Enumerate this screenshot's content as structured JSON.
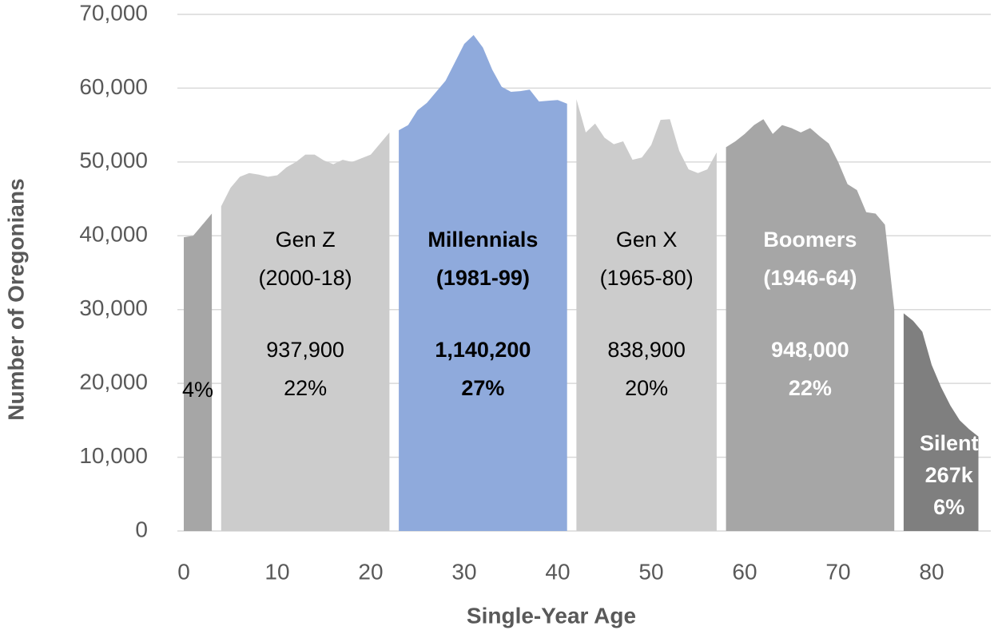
{
  "chart_data": {
    "type": "area",
    "x_label": "Single-Year Age",
    "y_label": "Number of Oregonians",
    "xlim": [
      0,
      86
    ],
    "xticks": [
      0,
      10,
      20,
      30,
      40,
      50,
      60,
      70,
      80
    ],
    "ylim": [
      0,
      70000
    ],
    "yticks": [
      0,
      {
        "value": 10000,
        "label": "10,000"
      },
      {
        "value": 20000,
        "label": "20,000"
      },
      {
        "value": 30000,
        "label": "30,000"
      },
      {
        "value": 40000,
        "label": "40,000"
      },
      {
        "value": 50000,
        "label": "50,000"
      },
      {
        "value": 60000,
        "label": "60,000"
      },
      {
        "value": 70000,
        "label": "70,000"
      }
    ],
    "grid": true,
    "series": [
      {
        "color": "#a6a6a6",
        "label_color": "#000000",
        "label_bold": false,
        "labels": [
          "4%"
        ],
        "x": [
          0,
          1,
          2,
          3
        ],
        "values": [
          39800,
          40000,
          41500,
          43000
        ]
      },
      {
        "color": "#cccccc",
        "label_color": "#000000",
        "label_bold": false,
        "labels": [
          "Gen Z",
          "(2000-18)",
          "937,900",
          "22%"
        ],
        "x": [
          4,
          5,
          6,
          7,
          8,
          9,
          10,
          11,
          12,
          13,
          14,
          15,
          16,
          17,
          18,
          19,
          20,
          21,
          22
        ],
        "values": [
          44000,
          46500,
          48000,
          48500,
          48300,
          48000,
          48200,
          49300,
          50000,
          51000,
          51000,
          50200,
          49700,
          50300,
          50000,
          50500,
          51000,
          52500,
          54000
        ]
      },
      {
        "color": "#8faadc",
        "label_color": "#000000",
        "label_bold": true,
        "labels": [
          "Millennials",
          "(1981-99)",
          "1,140,200",
          "27%"
        ],
        "x": [
          23,
          24,
          25,
          26,
          27,
          28,
          29,
          30,
          31,
          32,
          33,
          34,
          35,
          36,
          37,
          38,
          39,
          40,
          41
        ],
        "values": [
          54300,
          55000,
          57000,
          58000,
          59500,
          61000,
          63500,
          66000,
          67200,
          65500,
          62500,
          60200,
          59500,
          59600,
          59800,
          58200,
          58300,
          58400,
          57900
        ]
      },
      {
        "color": "#cccccc",
        "label_color": "#000000",
        "label_bold": false,
        "labels": [
          "Gen X",
          "(1965-80)",
          "838,900",
          "20%"
        ],
        "x": [
          42,
          43,
          44,
          45,
          46,
          47,
          48,
          49,
          50,
          51,
          52,
          53,
          54,
          55,
          56,
          57
        ],
        "values": [
          58500,
          54000,
          55200,
          53300,
          52400,
          52800,
          50300,
          50600,
          52300,
          55700,
          55800,
          51500,
          49000,
          48500,
          49000,
          51300
        ]
      },
      {
        "color": "#a6a6a6",
        "label_color": "#ffffff",
        "label_bold": true,
        "labels": [
          "Boomers",
          "(1946-64)",
          "948,000",
          "22%"
        ],
        "x": [
          58,
          59,
          60,
          61,
          62,
          63,
          64,
          65,
          66,
          67,
          68,
          69,
          70,
          71,
          72,
          73,
          74,
          75,
          76
        ],
        "values": [
          52000,
          52800,
          53800,
          55000,
          55800,
          53800,
          55000,
          54600,
          54000,
          54600,
          53500,
          52500,
          50000,
          47000,
          46200,
          43200,
          43000,
          41500,
          30000
        ]
      },
      {
        "color": "#7f7f7f",
        "label_color": "#ffffff",
        "label_bold": true,
        "labels": [
          "Silent",
          "267k",
          "6%"
        ],
        "x": [
          77,
          78,
          79,
          80,
          81,
          82,
          83,
          84,
          85
        ],
        "values": [
          29500,
          28500,
          27000,
          22500,
          19500,
          17000,
          15000,
          13800,
          12800
        ]
      }
    ]
  }
}
